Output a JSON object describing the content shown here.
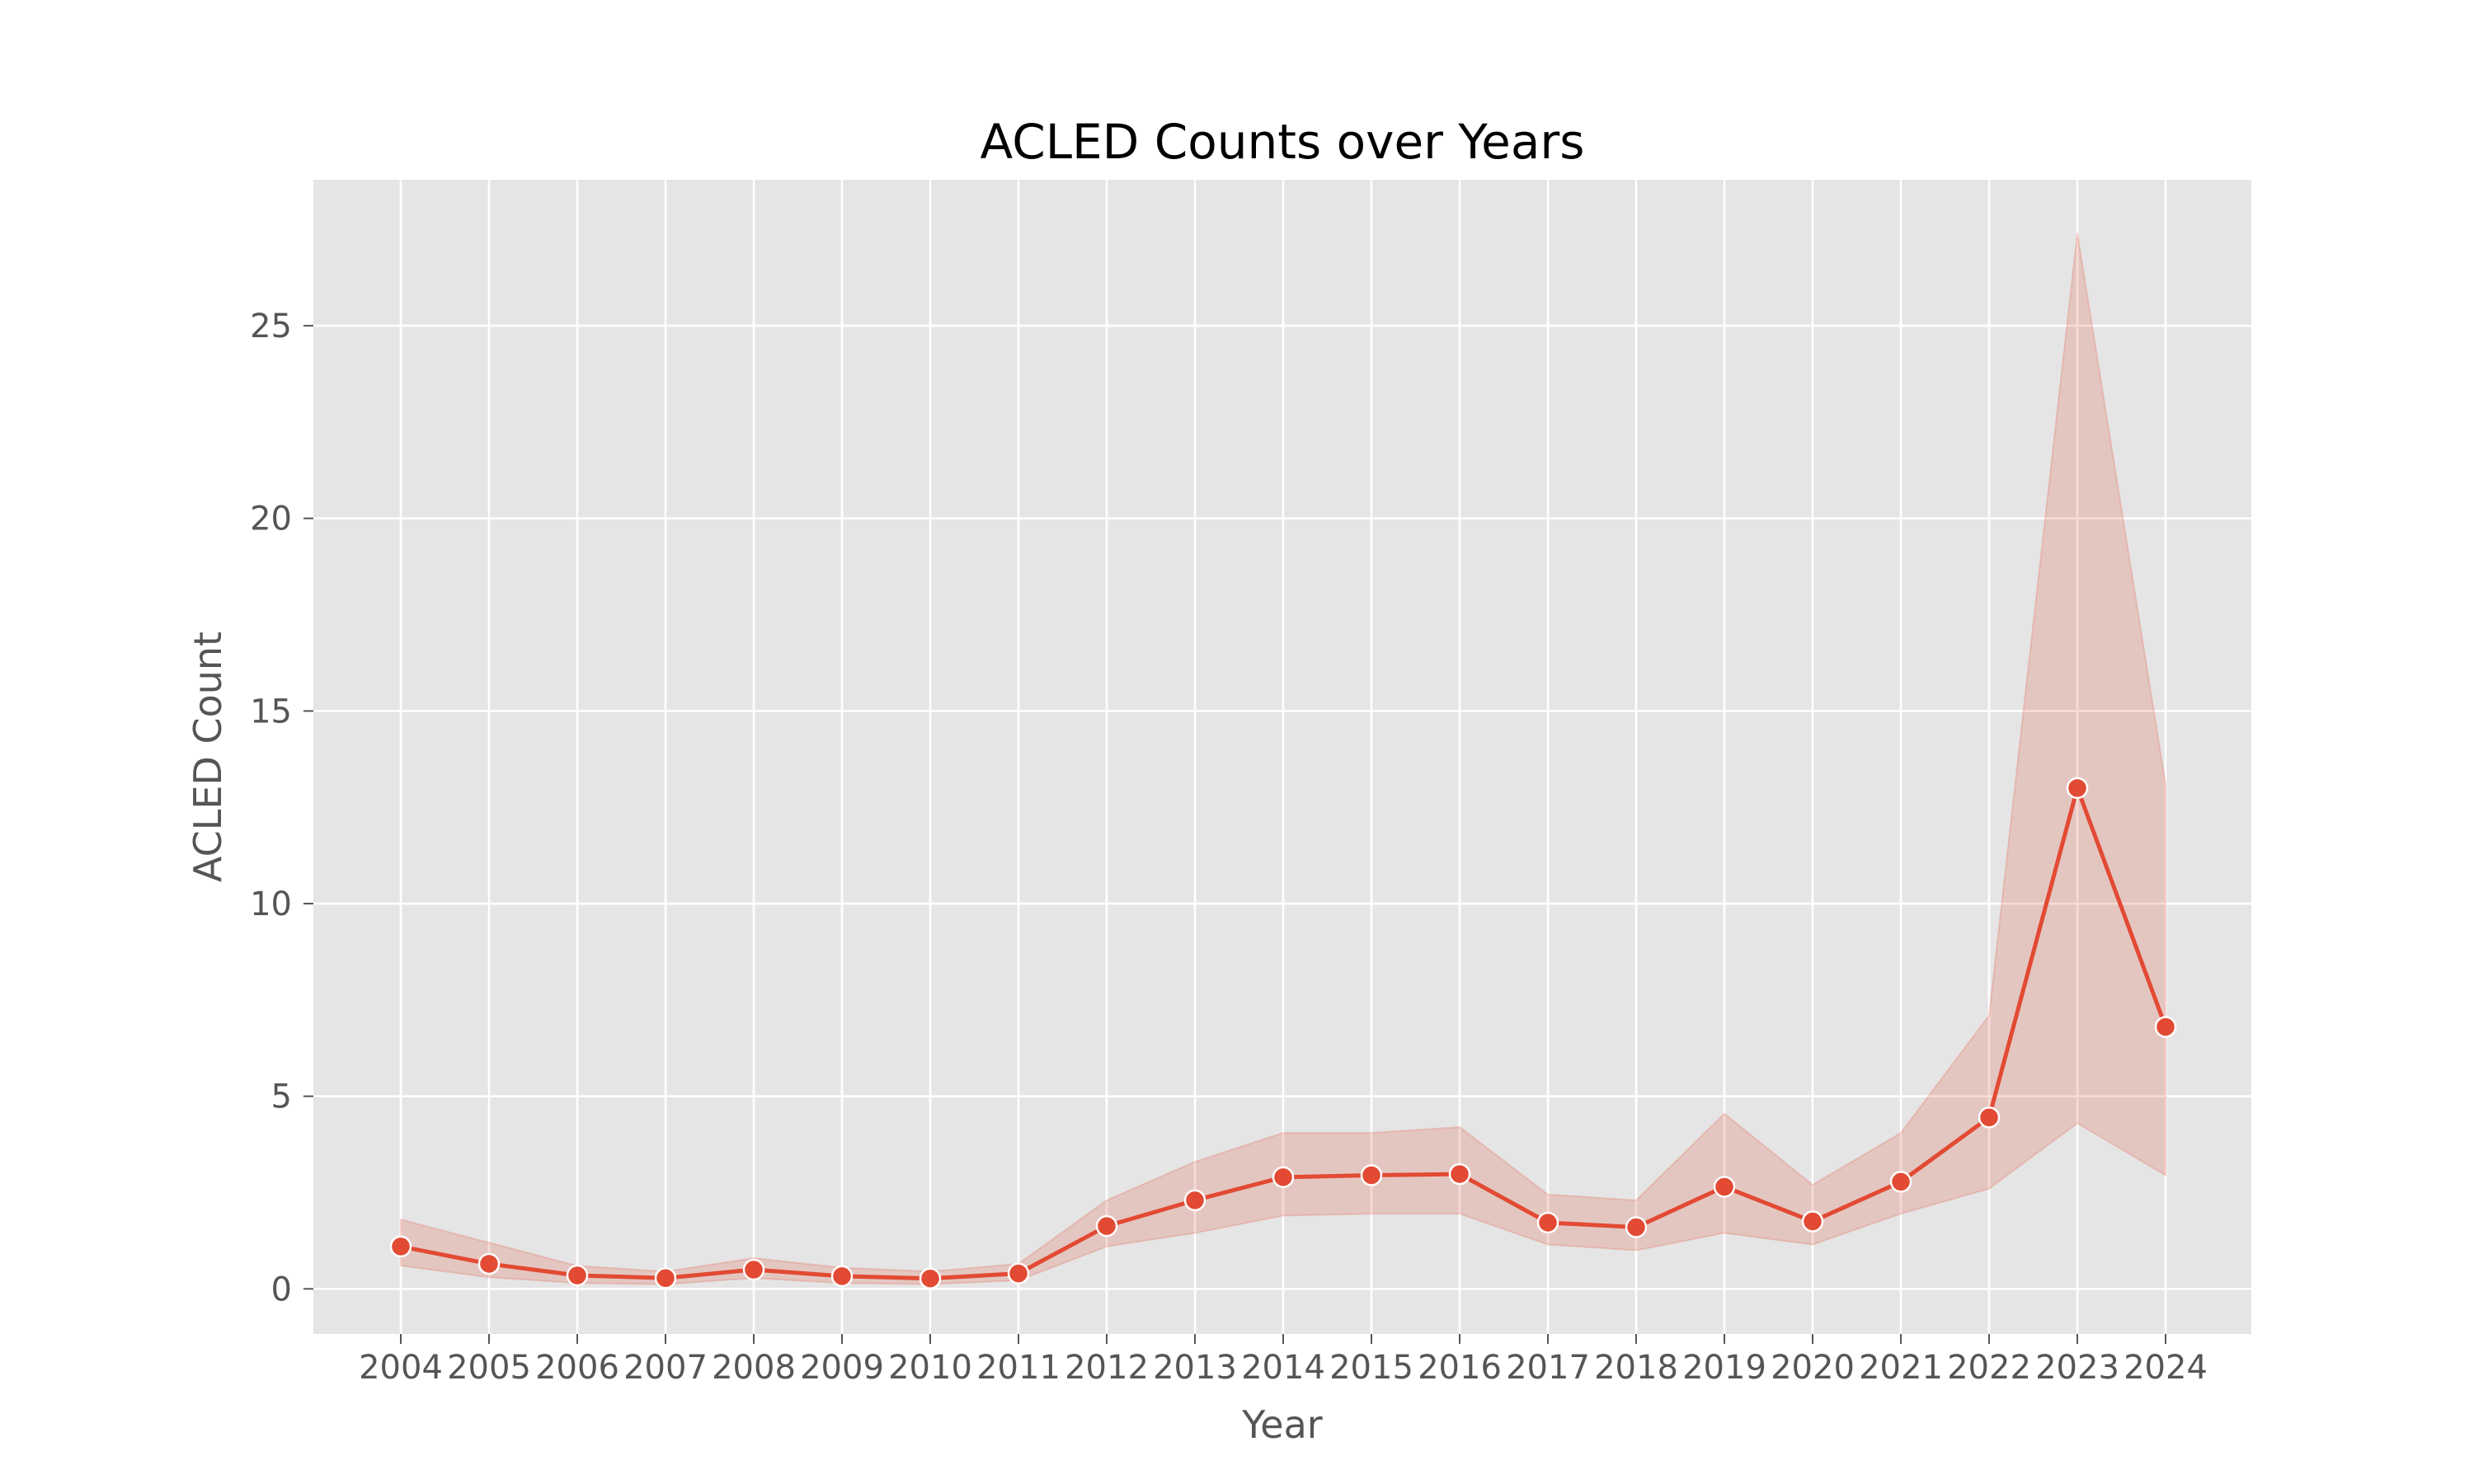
{
  "chart_data": {
    "type": "line",
    "title": "ACLED Counts over Years",
    "xlabel": "Year",
    "ylabel": "ACLED Count",
    "x": [
      "2004",
      "2005",
      "2006",
      "2007",
      "2008",
      "2009",
      "2010",
      "2011",
      "2012",
      "2013",
      "2014",
      "2015",
      "2016",
      "2017",
      "2018",
      "2019",
      "2020",
      "2021",
      "2022",
      "2023",
      "2024"
    ],
    "series": [
      {
        "values": [
          1.1,
          0.65,
          0.35,
          0.28,
          0.5,
          0.33,
          0.27,
          0.4,
          1.63,
          2.3,
          2.9,
          2.95,
          2.98,
          1.72,
          1.6,
          2.65,
          1.75,
          2.78,
          4.45,
          13.0,
          6.8
        ],
        "ci_upper": [
          1.8,
          1.2,
          0.6,
          0.45,
          0.8,
          0.55,
          0.45,
          0.65,
          2.3,
          3.3,
          4.05,
          4.05,
          4.2,
          2.45,
          2.3,
          4.55,
          2.7,
          4.05,
          7.1,
          27.4,
          13.1
        ],
        "ci_lower": [
          0.6,
          0.3,
          0.15,
          0.12,
          0.28,
          0.15,
          0.12,
          0.22,
          1.1,
          1.45,
          1.9,
          1.95,
          1.95,
          1.15,
          1.0,
          1.45,
          1.15,
          1.95,
          2.6,
          4.3,
          2.95
        ],
        "color": "#E24A33"
      }
    ],
    "yticks": [
      0,
      5,
      10,
      15,
      20,
      25
    ],
    "ylim": [
      -1.17,
      28.79
    ],
    "grid": true,
    "legend": "none",
    "colors": {
      "background": "#E5E5E5",
      "grid": "#FFFFFF",
      "line": "#E24A33",
      "band": "#E24A33"
    }
  }
}
